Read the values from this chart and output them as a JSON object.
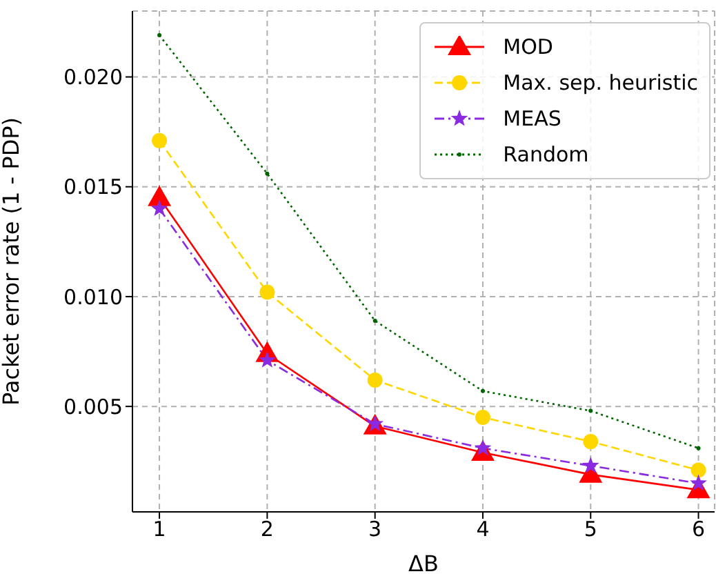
{
  "chart_data": {
    "type": "line",
    "xlabel": "ΔB",
    "ylabel": "Packet error rate (1 - PDP)",
    "x": [
      1,
      2,
      3,
      4,
      5,
      6
    ],
    "series": [
      {
        "name": "MOD",
        "color": "#ff0000",
        "marker": "triangle",
        "line_style": "solid",
        "values": [
          0.0145,
          0.0074,
          0.0041,
          0.0029,
          0.0019,
          0.0012
        ]
      },
      {
        "name": "Max. sep. heuristic",
        "color": "#ffd700",
        "marker": "circle",
        "line_style": "dashed",
        "values": [
          0.0171,
          0.0102,
          0.0062,
          0.0045,
          0.0034,
          0.0021
        ]
      },
      {
        "name": "MEAS",
        "color": "#8a2be2",
        "marker": "star",
        "line_style": "dashdot",
        "values": [
          0.014,
          0.0071,
          0.0042,
          0.0031,
          0.0023,
          0.0015
        ]
      },
      {
        "name": "Random",
        "color": "#006400",
        "marker": "point",
        "line_style": "dotted",
        "values": [
          0.0219,
          0.0156,
          0.0089,
          0.0057,
          0.0048,
          0.0031
        ]
      }
    ],
    "xlim": [
      0.75,
      6.15
    ],
    "xticks": [
      1,
      2,
      3,
      4,
      5,
      6
    ],
    "ylim": [
      0.0002,
      0.023
    ],
    "yticks": [
      0.005,
      {
        "value": 0.01,
        "label": "0.010"
      },
      0.015,
      {
        "value": 0.02,
        "label": "0.020"
      }
    ],
    "grid": true,
    "legend": "top right"
  }
}
